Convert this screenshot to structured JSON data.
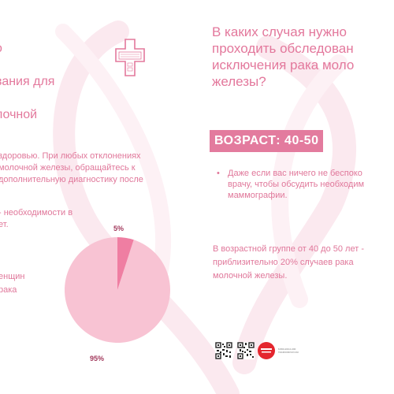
{
  "left_page": {
    "title_lines": [
      "о",
      "вания для",
      "лочной"
    ],
    "paragraph1_lines": [
      "здоровью. При любых отклонениях",
      "молочной железы, обращайтесь к",
      "дополнительную диагностику после"
    ],
    "paragraph2_lines": [
      "- необходимости в",
      "ет."
    ],
    "paragraph3_lines": [
      "енщин",
      "рака"
    ],
    "pie": {
      "slices": [
        {
          "label": "5%",
          "value": 5,
          "color": "#ef7ea2"
        },
        {
          "label": "95%",
          "value": 95,
          "color": "#f8c3d3"
        }
      ]
    }
  },
  "right_page": {
    "title_lines": [
      "В каких случая нужно",
      "проходить обследован",
      "исключения рака моло",
      "железы?"
    ],
    "age_banner": "ВОЗРАСТ: 40-50",
    "bullet_marker": "•",
    "bullet_lines": [
      "Даже если вас ничего не беспоко",
      "врачу, чтобы обсудить необходим",
      "маммографии."
    ],
    "stat_lines": [
      "В возрастной группе от 40 до 50 лет -",
      "приблизительно 20% случаев рака",
      "молочной железы."
    ],
    "footer_lines": [
      "8-800-200-0-200",
      "TAKZDOROVO.RU"
    ]
  },
  "colors": {
    "accent": "#e3789c",
    "banner_bg": "#e37b9e",
    "pie_small": "#ef7ea2",
    "pie_large": "#f8c3d3",
    "pie_label": "#a23a5d",
    "ribbon": "#fbe9ef"
  },
  "icons": [
    "medical-cross-icon",
    "qr-code-icon",
    "red-badge-icon"
  ]
}
